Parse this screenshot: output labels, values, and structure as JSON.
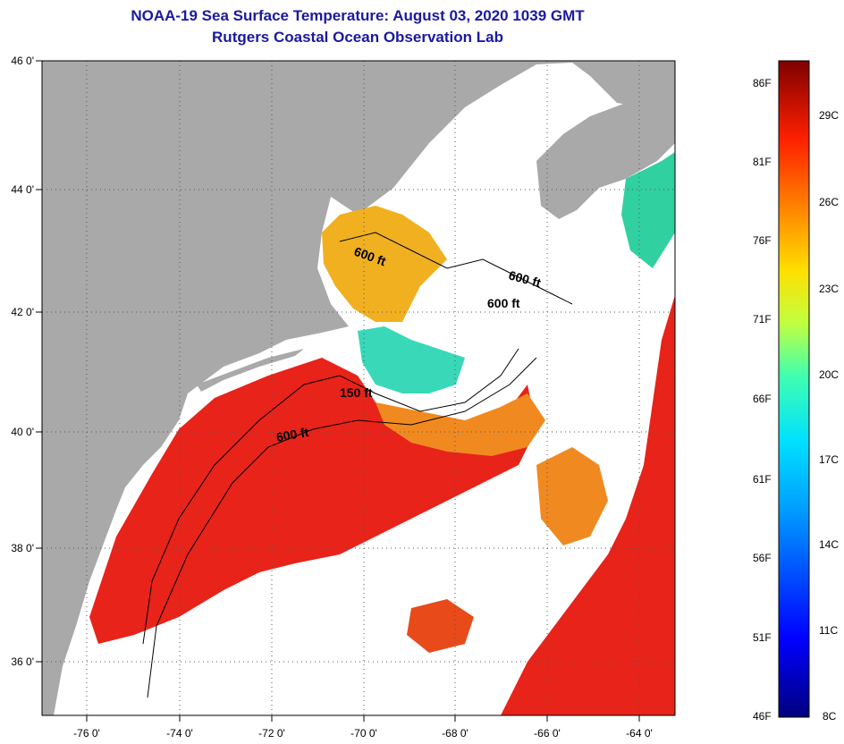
{
  "title": {
    "line1": "NOAA-19 Sea Surface Temperature:  August 03, 2020 1039 GMT",
    "line2": "Rutgers Coastal Ocean Observation Lab"
  },
  "map": {
    "lat_labels": [
      "46 0'",
      "44 0'",
      "42 0'",
      "40 0'",
      "38 0'",
      "36 0'"
    ],
    "lon_labels": [
      "-76 0'",
      "-74 0'",
      "-72 0'",
      "-70 0'",
      "-68 0'",
      "-66 0'",
      "-64 0'"
    ],
    "contour_labels": [
      "600 ft",
      "600 ft",
      "600 ft",
      "150 ft",
      "600 ft"
    ],
    "colors": {
      "land": "#a9a9a9",
      "cloud": "#ffffff",
      "warm": "#e8231a",
      "mid": "#f0a020",
      "cool": "#30d0c0"
    }
  },
  "colorbar": {
    "fahrenheit": [
      "86F",
      "81F",
      "76F",
      "71F",
      "66F",
      "61F",
      "56F",
      "51F",
      "46F"
    ],
    "celsius": [
      "29C",
      "26C",
      "23C",
      "20C",
      "17C",
      "14C",
      "11C",
      "8C"
    ]
  }
}
